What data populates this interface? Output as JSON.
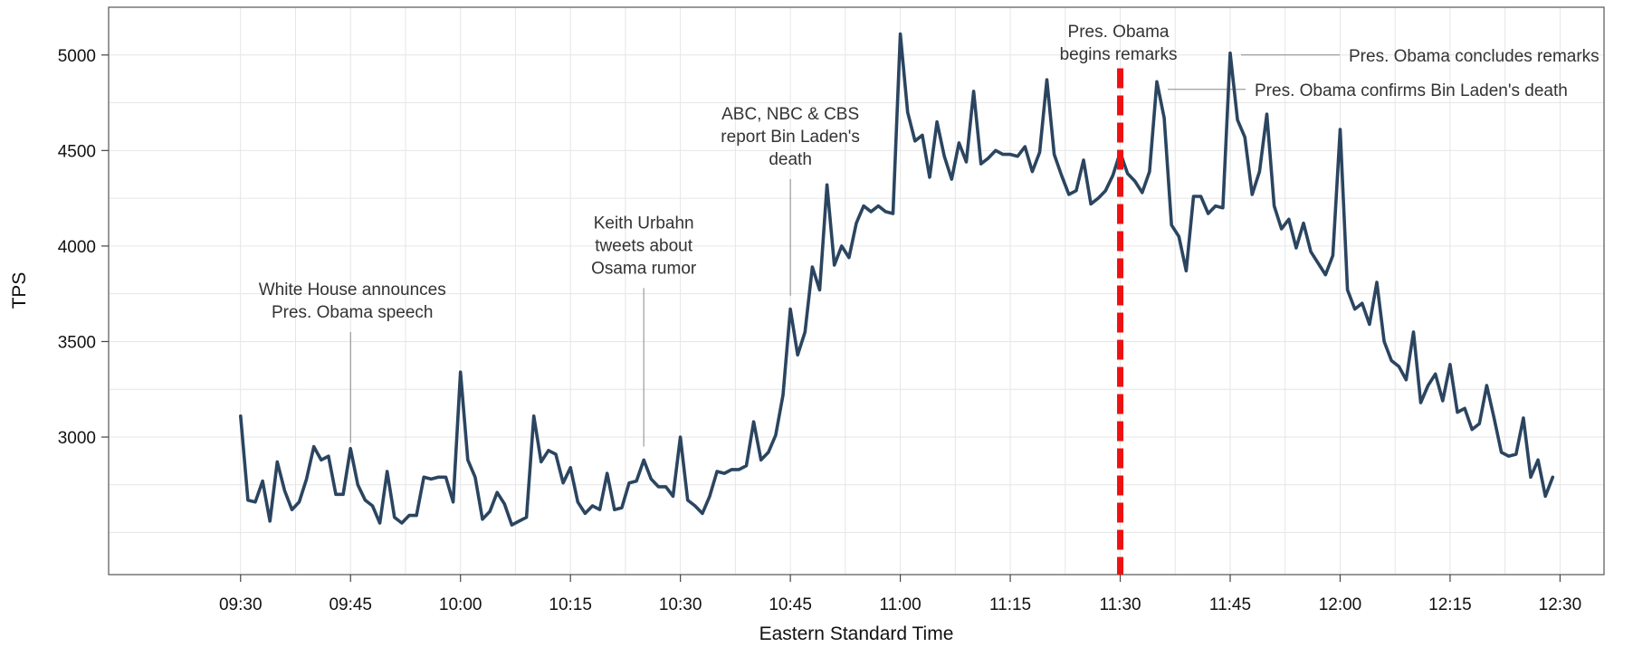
{
  "chart_data": {
    "type": "line",
    "title": "",
    "xlabel": "Eastern Standard Time",
    "ylabel": "TPS",
    "x_start": "09:30",
    "x_step_minutes": 1,
    "xlim": [
      "09:12",
      "12:36"
    ],
    "ylim": [
      2280,
      5250
    ],
    "xticks": [
      "09:30",
      "09:45",
      "10:00",
      "10:15",
      "10:30",
      "10:45",
      "11:00",
      "11:15",
      "11:30",
      "11:45",
      "12:00",
      "12:15",
      "12:30"
    ],
    "yticks": [
      3000,
      3500,
      4000,
      4500,
      5000
    ],
    "grid": true,
    "series": [
      {
        "name": "",
        "color": "#2b4560",
        "values": [
          3110,
          2670,
          2660,
          2770,
          2560,
          2870,
          2720,
          2620,
          2660,
          2780,
          2950,
          2880,
          2900,
          2700,
          2700,
          2940,
          2750,
          2670,
          2640,
          2550,
          2820,
          2580,
          2550,
          2590,
          2590,
          2790,
          2780,
          2790,
          2790,
          2660,
          3340,
          2880,
          2790,
          2570,
          2610,
          2710,
          2650,
          2540,
          2560,
          2580,
          3110,
          2870,
          2930,
          2910,
          2760,
          2840,
          2660,
          2600,
          2640,
          2620,
          2810,
          2620,
          2630,
          2760,
          2770,
          2880,
          2780,
          2740,
          2740,
          2690,
          3000,
          2670,
          2640,
          2600,
          2690,
          2820,
          2810,
          2830,
          2830,
          2850,
          3080,
          2880,
          2920,
          3010,
          3220,
          3670,
          3430,
          3550,
          3890,
          3770,
          4320,
          3900,
          4000,
          3940,
          4120,
          4210,
          4180,
          4210,
          4180,
          4170,
          5110,
          4700,
          4550,
          4580,
          4360,
          4650,
          4470,
          4350,
          4540,
          4440,
          4810,
          4430,
          4460,
          4500,
          4480,
          4480,
          4470,
          4520,
          4390,
          4490,
          4870,
          4480,
          4370,
          4270,
          4290,
          4450,
          4220,
          4250,
          4290,
          4370,
          4490,
          4380,
          4340,
          4280,
          4390,
          4860,
          4670,
          4110,
          4050,
          3870,
          4260,
          4260,
          4170,
          4210,
          4200,
          5010,
          4660,
          4570,
          4270,
          4390,
          4690,
          4210,
          4090,
          4140,
          3990,
          4120,
          3970,
          3910,
          3850,
          3950,
          4610,
          3770,
          3670,
          3700,
          3590,
          3810,
          3500,
          3400,
          3370,
          3300,
          3550,
          3180,
          3270,
          3330,
          3190,
          3380,
          3130,
          3150,
          3040,
          3070,
          3270,
          3100,
          2920,
          2900,
          2910,
          3100,
          2790,
          2880,
          2690,
          2790
        ]
      }
    ],
    "marker": {
      "x": "11:30",
      "color": "#ee1111",
      "style": "dashed"
    },
    "annotations": [
      {
        "lines": [
          "White House announces",
          "Pres. Obama speech"
        ],
        "x": "09:45",
        "y_top": 3550,
        "y_bottom": 2970
      },
      {
        "lines": [
          "Keith Urbahn",
          "tweets about",
          "Osama rumor"
        ],
        "x": "10:25",
        "y_top": 3780,
        "y_bottom": 2950
      },
      {
        "lines": [
          "ABC, NBC & CBS",
          "report Bin Laden's",
          "death"
        ],
        "x": "10:45",
        "y_top": 4350,
        "y_bottom": 3740
      },
      {
        "lines": [
          "Pres. Obama",
          "begins remarks"
        ],
        "x": "11:30"
      },
      {
        "lines": [
          "Pres. Obama confirms Bin Laden's death"
        ],
        "x": "11:35",
        "y": 4820
      },
      {
        "lines": [
          "Pres. Obama concludes remarks"
        ],
        "x": "11:45",
        "y": 5000
      }
    ]
  }
}
